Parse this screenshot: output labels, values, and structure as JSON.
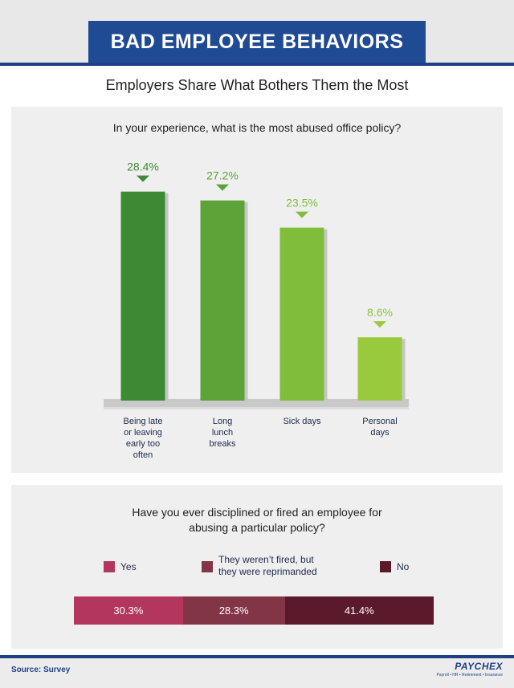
{
  "header": {
    "title": "BAD EMPLOYEE BEHAVIORS"
  },
  "subtitle": "Employers Share What Bothers Them the Most",
  "chart_data": [
    {
      "type": "bar",
      "title": "In your experience, what is the most abused office policy?",
      "categories": [
        "Being late or leaving early too often",
        "Long lunch breaks",
        "Sick days",
        "Personal days"
      ],
      "category_lines": [
        [
          "Being late",
          "or leaving",
          "early too",
          "often"
        ],
        [
          "Long",
          "lunch",
          "breaks"
        ],
        [
          "Sick days"
        ],
        [
          "Personal",
          "days"
        ]
      ],
      "values": [
        28.4,
        27.2,
        23.5,
        8.6
      ],
      "value_labels": [
        "28.4%",
        "27.2%",
        "23.5%",
        "8.6%"
      ],
      "colors": [
        "#3c8a33",
        "#5da337",
        "#7fbd3b",
        "#99c93d"
      ],
      "label_colors": [
        "#3c8a33",
        "#5da337",
        "#7fbd3b",
        "#8fc23c"
      ],
      "ylim": [
        0,
        30
      ]
    },
    {
      "type": "bar",
      "orientation": "horizontal-stacked",
      "title_lines": [
        "Have you ever disciplined or fired an employee for",
        "abusing a particular policy?"
      ],
      "categories": [
        "Yes",
        "They weren't fired, but they were reprimanded",
        "No"
      ],
      "legend_lines": [
        [
          "Yes"
        ],
        [
          "They weren’t fired, but",
          "they were reprimanded"
        ],
        [
          "No"
        ]
      ],
      "values": [
        30.3,
        28.3,
        41.4
      ],
      "value_labels": [
        "30.3%",
        "28.3%",
        "41.4%"
      ],
      "colors": [
        "#b3365f",
        "#833548",
        "#5a1a2c"
      ]
    }
  ],
  "footer": {
    "source": "Source: Survey",
    "logo": "PAYCHEX",
    "logo_tagline": "Payroll • HR • Retirement • Insurance"
  }
}
